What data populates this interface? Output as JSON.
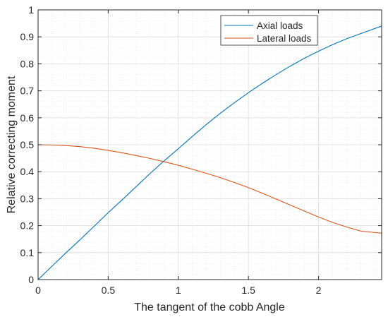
{
  "chart_data": {
    "type": "line",
    "title": "",
    "xlabel": "The tangent of the cobb Angle",
    "ylabel": "Relative correcting moment",
    "xlim": [
      0,
      2.45
    ],
    "ylim": [
      0,
      1
    ],
    "xticks": [
      0,
      0.5,
      1,
      1.5,
      2
    ],
    "xtick_labels": [
      "0",
      "0.5",
      "1",
      "1.5",
      "2"
    ],
    "yticks": [
      0,
      0.1,
      0.2,
      0.3,
      0.4,
      0.5,
      0.6,
      0.7,
      0.8,
      0.9,
      1
    ],
    "ytick_labels": [
      "0",
      "0.1",
      "0.2",
      "0.3",
      "0.4",
      "0.5",
      "0.6",
      "0.7",
      "0.8",
      "0.9",
      "1"
    ],
    "grid": true,
    "minor_grid": true,
    "legend_position": "top-right",
    "x": [
      0,
      0.1,
      0.2,
      0.3,
      0.4,
      0.5,
      0.6,
      0.7,
      0.8,
      0.9,
      1.0,
      1.1,
      1.2,
      1.3,
      1.4,
      1.5,
      1.6,
      1.7,
      1.8,
      1.9,
      2.0,
      2.1,
      2.2,
      2.3,
      2.45
    ],
    "series": [
      {
        "name": "Axial loads",
        "color": "#0072BD",
        "values": [
          0,
          0.05,
          0.1,
          0.148,
          0.198,
          0.248,
          0.296,
          0.345,
          0.394,
          0.441,
          0.485,
          0.531,
          0.575,
          0.617,
          0.656,
          0.693,
          0.728,
          0.761,
          0.792,
          0.821,
          0.847,
          0.871,
          0.893,
          0.912,
          0.94
        ]
      },
      {
        "name": "Lateral loads",
        "color": "#D95319",
        "values": [
          0.5,
          0.499,
          0.497,
          0.493,
          0.487,
          0.479,
          0.47,
          0.46,
          0.449,
          0.437,
          0.424,
          0.409,
          0.394,
          0.378,
          0.36,
          0.341,
          0.32,
          0.298,
          0.276,
          0.254,
          0.232,
          0.212,
          0.195,
          0.18,
          0.172
        ]
      }
    ]
  }
}
